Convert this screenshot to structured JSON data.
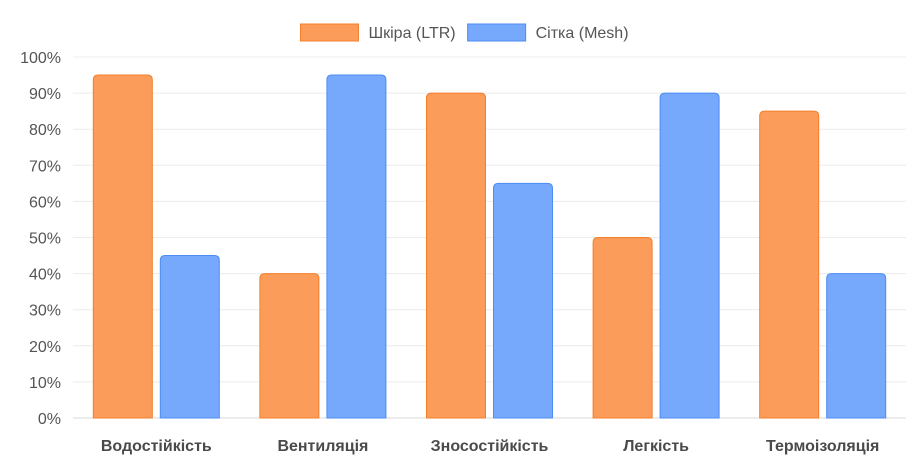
{
  "chart_data": {
    "type": "bar",
    "title": "",
    "xlabel": "",
    "ylabel": "",
    "ylim": [
      0,
      100
    ],
    "y_ticks": [
      0,
      10,
      20,
      30,
      40,
      50,
      60,
      70,
      80,
      90,
      100
    ],
    "y_tick_suffix": "%",
    "grid": true,
    "legend_position": "top-center",
    "categories": [
      "Водостійкість",
      "Вентиляція",
      "Зносостійкість",
      "Легкість",
      "Термоізоляція"
    ],
    "series": [
      {
        "name": "Шкіра (LTR)",
        "color": "#fb9c5a",
        "border_color": "#f47f2a",
        "values": [
          95,
          40,
          90,
          50,
          85
        ]
      },
      {
        "name": "Сітка (Mesh)",
        "color": "#76a8fb",
        "border_color": "#4d8cf5",
        "values": [
          45,
          95,
          65,
          90,
          40
        ]
      }
    ]
  }
}
